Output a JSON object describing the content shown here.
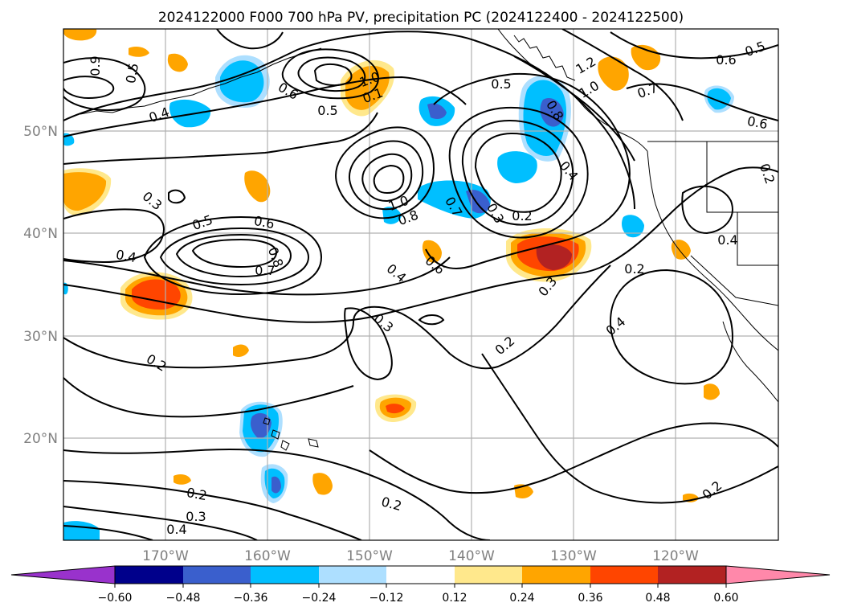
{
  "title": "2024122000 F000 700 hPa PV, precipitation PC (2024122400 - 2024122500)",
  "lon_labels": [
    "170°W",
    "160°W",
    "150°W",
    "140°W",
    "130°W",
    "120°W"
  ],
  "lat_labels": [
    "50°N",
    "40°N",
    "30°N",
    "20°N"
  ],
  "colorbar": {
    "ticks": [
      "−0.60",
      "−0.48",
      "−0.36",
      "−0.24",
      "−0.12",
      "0.12",
      "0.24",
      "0.36",
      "0.48",
      "0.60"
    ],
    "colors": [
      "#9932CC",
      "#00008B",
      "#3A5FCD",
      "#00BFFF",
      "#ADDFFF",
      "#FFFFFF",
      "#FFE88C",
      "#FFA500",
      "#FF4500",
      "#B22222",
      "#FF88AA"
    ]
  },
  "contour_labels": [
    "0.6",
    "0.5",
    "0.4",
    "1.0",
    "0.5",
    "0.6",
    "0.1",
    "1.2",
    "1.0",
    "0.7",
    "0.6",
    "0.5",
    "0.6",
    "0.8",
    "0.4",
    "0.3",
    "0.5",
    "0.6",
    "0.4",
    "0.8",
    "0.7",
    "1.0",
    "0.8",
    "0.7",
    "0.3",
    "0.2",
    "0.4",
    "0.6",
    "0.3",
    "0.2",
    "0.4",
    "0.4",
    "0.3",
    "0.2",
    "0.2",
    "0.3",
    "0.4",
    "0.2",
    "0.2",
    "0.2",
    "0.2",
    "0.9",
    "0.5"
  ]
}
